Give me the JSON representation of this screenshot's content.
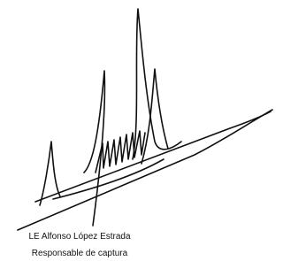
{
  "signature": {
    "name": "LE Alfonso López Estrada",
    "role": "Responsable de captura"
  }
}
